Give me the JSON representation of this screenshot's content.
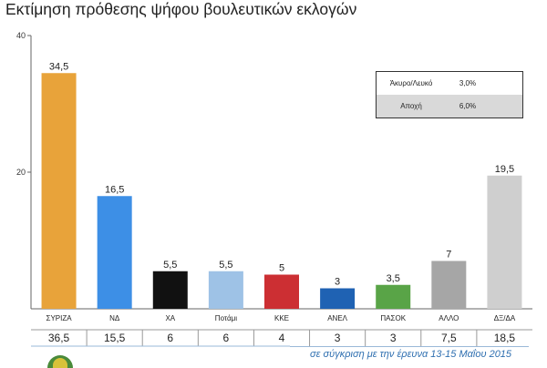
{
  "title": "Εκτίμηση πρόθεσης ψήφου βουλευτικών εκλογών",
  "chart_data": {
    "type": "bar",
    "title": "Εκτίμηση πρόθεσης ψήφου βουλευτικών εκλογών",
    "categories": [
      "ΣΥΡΙΖΑ",
      "ΝΔ",
      "ΧΑ",
      "Ποτάμι",
      "ΚΚΕ",
      "ΑΝΕΛ",
      "ΠΑΣΟΚ",
      "ΑΛΛΟ",
      "ΔΞ/ΔΑ"
    ],
    "values": [
      34.5,
      16.5,
      5.5,
      5.5,
      5,
      3,
      3.5,
      7,
      19.5
    ],
    "value_labels": [
      "34,5",
      "16,5",
      "5,5",
      "5,5",
      "5",
      "3",
      "3,5",
      "7",
      "19,5"
    ],
    "colors": [
      "#e8a33a",
      "#3d8fe6",
      "#111111",
      "#9ec2e6",
      "#cc2f33",
      "#1f62b3",
      "#59a447",
      "#a6a6a6",
      "#cfcfcf"
    ],
    "ylim": [
      0,
      40
    ],
    "yticks": [
      20,
      40
    ],
    "ytick_labels": [
      "20",
      "40"
    ],
    "xlabel": "",
    "ylabel": "",
    "comparison_values": [
      "36,5",
      "15,5",
      "6",
      "6",
      "4",
      "3",
      "3",
      "7,5",
      "18,5"
    ]
  },
  "legend_table": [
    {
      "label": "Άκυρο/Λευκό",
      "value": "3,0%"
    },
    {
      "label": "Αποχή",
      "value": "6,0%"
    }
  ],
  "comparison_note": "σε σύγκριση με την έρευνα 13-15 Μαΐου 2015"
}
